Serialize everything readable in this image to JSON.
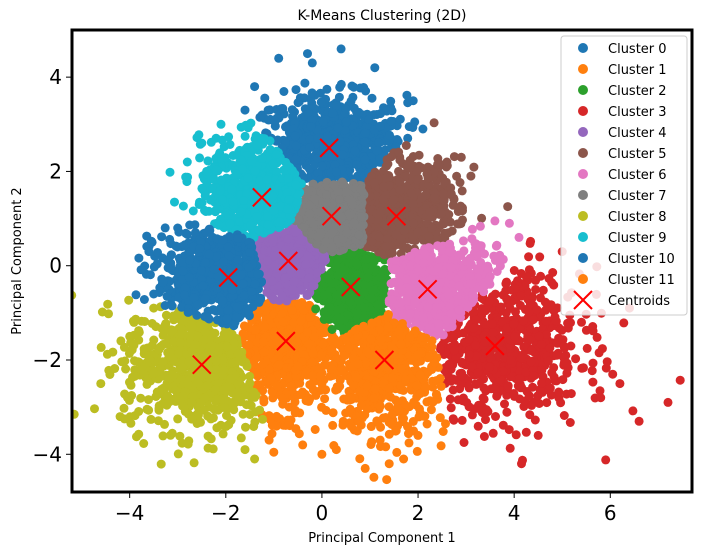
{
  "chart_data": {
    "type": "scatter",
    "title": "K-Means Clustering (2D)",
    "xlabel": "Principal Component 1",
    "ylabel": "Principal Component 2",
    "xlim": [
      -5.2,
      7.7
    ],
    "ylim": [
      -4.8,
      5.0
    ],
    "x_ticks": [
      -4,
      -2,
      0,
      2,
      4,
      6
    ],
    "y_ticks": [
      -4,
      -2,
      0,
      2,
      4
    ],
    "grid": false,
    "legend_position": "top-right",
    "series": [
      {
        "name": "Cluster 0",
        "color": "#1f77b4",
        "centroid": [
          0.15,
          2.5
        ],
        "spread": [
          0.8,
          0.55
        ],
        "outliers": [
          [
            -1.4,
            3.8
          ],
          [
            -0.9,
            4.4
          ],
          [
            0.4,
            4.6
          ],
          [
            1.1,
            4.2
          ],
          [
            -1.6,
            3.3
          ],
          [
            1.9,
            3.5
          ],
          [
            2.1,
            2.9
          ],
          [
            -0.3,
            4.5
          ]
        ]
      },
      {
        "name": "Cluster 1",
        "color": "#ff7f0e",
        "centroid": [
          -0.75,
          -1.6
        ],
        "spread": [
          0.55,
          0.75
        ],
        "outliers": [
          [
            -0.4,
            -3.8
          ],
          [
            0.3,
            -3.9
          ],
          [
            -1.1,
            -3.7
          ],
          [
            0.0,
            -4.0
          ]
        ]
      },
      {
        "name": "Cluster 2",
        "color": "#2ca02c",
        "centroid": [
          0.6,
          -0.45
        ],
        "spread": [
          0.4,
          0.5
        ],
        "outliers": []
      },
      {
        "name": "Cluster 3",
        "color": "#d62728",
        "centroid": [
          3.6,
          -1.7
        ],
        "spread": [
          0.9,
          0.8
        ],
        "outliers": [
          [
            5.4,
            -1.2
          ],
          [
            5.8,
            -2.8
          ],
          [
            6.2,
            -2.5
          ],
          [
            6.6,
            -3.3
          ],
          [
            7.2,
            -2.9
          ],
          [
            6.4,
            -0.9
          ],
          [
            5.0,
            0.3
          ],
          [
            4.5,
            -3.6
          ]
        ]
      },
      {
        "name": "Cluster 4",
        "color": "#9467bd",
        "centroid": [
          -0.7,
          0.1
        ],
        "spread": [
          0.4,
          0.4
        ],
        "outliers": []
      },
      {
        "name": "Cluster 5",
        "color": "#8c564b",
        "centroid": [
          1.55,
          1.05
        ],
        "spread": [
          0.65,
          0.6
        ],
        "outliers": [
          [
            2.6,
            2.2
          ],
          [
            3.1,
            1.9
          ],
          [
            2.9,
            2.3
          ]
        ]
      },
      {
        "name": "Cluster 6",
        "color": "#e377c2",
        "centroid": [
          2.2,
          -0.5
        ],
        "spread": [
          0.75,
          0.55
        ],
        "outliers": [
          [
            3.9,
            0.9
          ],
          [
            4.1,
            0.6
          ],
          [
            3.6,
            0.95
          ]
        ]
      },
      {
        "name": "Cluster 7",
        "color": "#7f7f7f",
        "centroid": [
          0.2,
          1.05
        ],
        "spread": [
          0.45,
          0.45
        ],
        "outliers": []
      },
      {
        "name": "Cluster 8",
        "color": "#bcbd22",
        "centroid": [
          -2.5,
          -2.1
        ],
        "spread": [
          0.8,
          0.7
        ],
        "outliers": [
          [
            -4.6,
            -2.5
          ],
          [
            -4.2,
            -3.2
          ],
          [
            -4.0,
            -1.5
          ],
          [
            -3.5,
            -0.9
          ],
          [
            -1.4,
            -4.1
          ],
          [
            -1.6,
            -3.9
          ]
        ]
      },
      {
        "name": "Cluster 9",
        "color": "#17becf",
        "centroid": [
          -1.25,
          1.45
        ],
        "spread": [
          0.65,
          0.6
        ],
        "outliers": [
          [
            -2.8,
            2.2
          ],
          [
            -2.5,
            2.6
          ],
          [
            -2.1,
            3.0
          ],
          [
            -2.4,
            2.0
          ]
        ]
      },
      {
        "name": "Cluster 10",
        "color": "#1f77b4",
        "centroid": [
          -1.95,
          -0.25
        ],
        "spread": [
          0.75,
          0.55
        ],
        "outliers": [
          [
            -3.6,
            0.3
          ],
          [
            -3.5,
            -0.6
          ],
          [
            -3.0,
            0.8
          ]
        ]
      },
      {
        "name": "Cluster 11",
        "color": "#ff7f0e",
        "centroid": [
          1.3,
          -2.0
        ],
        "spread": [
          0.65,
          0.75
        ],
        "outliers": [
          [
            0.9,
            -4.3
          ],
          [
            1.4,
            -4.2
          ],
          [
            2.0,
            -3.6
          ],
          [
            1.7,
            -4.1
          ]
        ]
      }
    ],
    "centroids": {
      "name": "Centroids",
      "color": "#ff0000",
      "marker": "x",
      "points": [
        [
          0.15,
          2.5
        ],
        [
          -0.75,
          -1.6
        ],
        [
          0.6,
          -0.45
        ],
        [
          3.6,
          -1.7
        ],
        [
          -0.7,
          0.1
        ],
        [
          1.55,
          1.05
        ],
        [
          2.2,
          -0.5
        ],
        [
          0.2,
          1.05
        ],
        [
          -2.5,
          -2.1
        ],
        [
          -1.25,
          1.45
        ],
        [
          -1.95,
          -0.25
        ],
        [
          1.3,
          -2.0
        ]
      ]
    }
  }
}
